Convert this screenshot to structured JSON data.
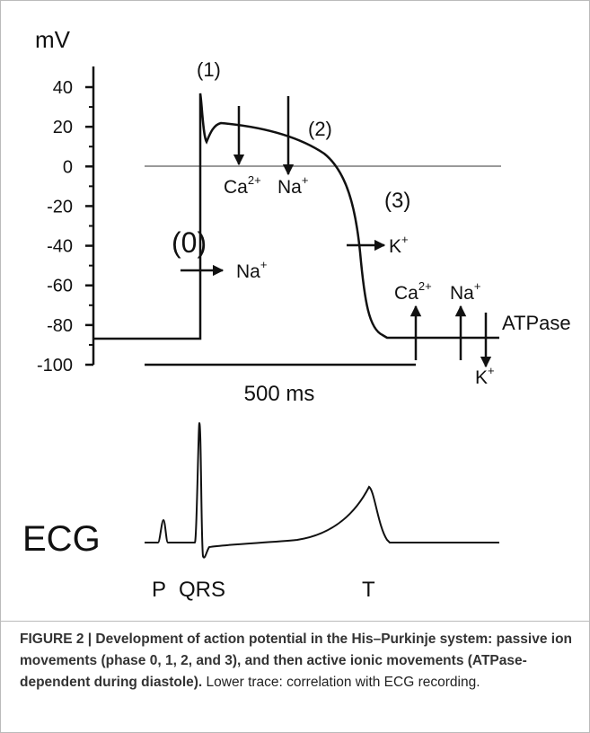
{
  "figure": {
    "y_axis": {
      "label": "mV",
      "ylim": [
        -100,
        40
      ],
      "yticks": [
        40,
        20,
        0,
        -20,
        -40,
        -60,
        -80,
        -100
      ]
    },
    "phases": [
      "(0)",
      "(1)",
      "(2)",
      "(3)"
    ],
    "ions": [
      {
        "base": "Ca",
        "charge": "2+"
      },
      {
        "base": "Na",
        "charge": "+"
      },
      {
        "base": "Na",
        "charge": "+"
      },
      {
        "base": "K",
        "charge": "+"
      },
      {
        "base": "Ca",
        "charge": "2+"
      },
      {
        "base": "Na",
        "charge": "+"
      },
      {
        "base": "K",
        "charge": "+"
      }
    ],
    "pump": "ATPase",
    "scale_bar": "500 ms",
    "ecg": {
      "label": "ECG",
      "waves": [
        "P",
        "QRS",
        "T"
      ]
    },
    "caption": {
      "bold": "FIGURE 2 | Development of action potential in the His–Purkinje system: passive ion movements (phase 0, 1, 2, and 3), and then active ionic movements (ATPase-dependent during diastole).",
      "text": " Lower trace: correlation with ECG recording."
    }
  }
}
